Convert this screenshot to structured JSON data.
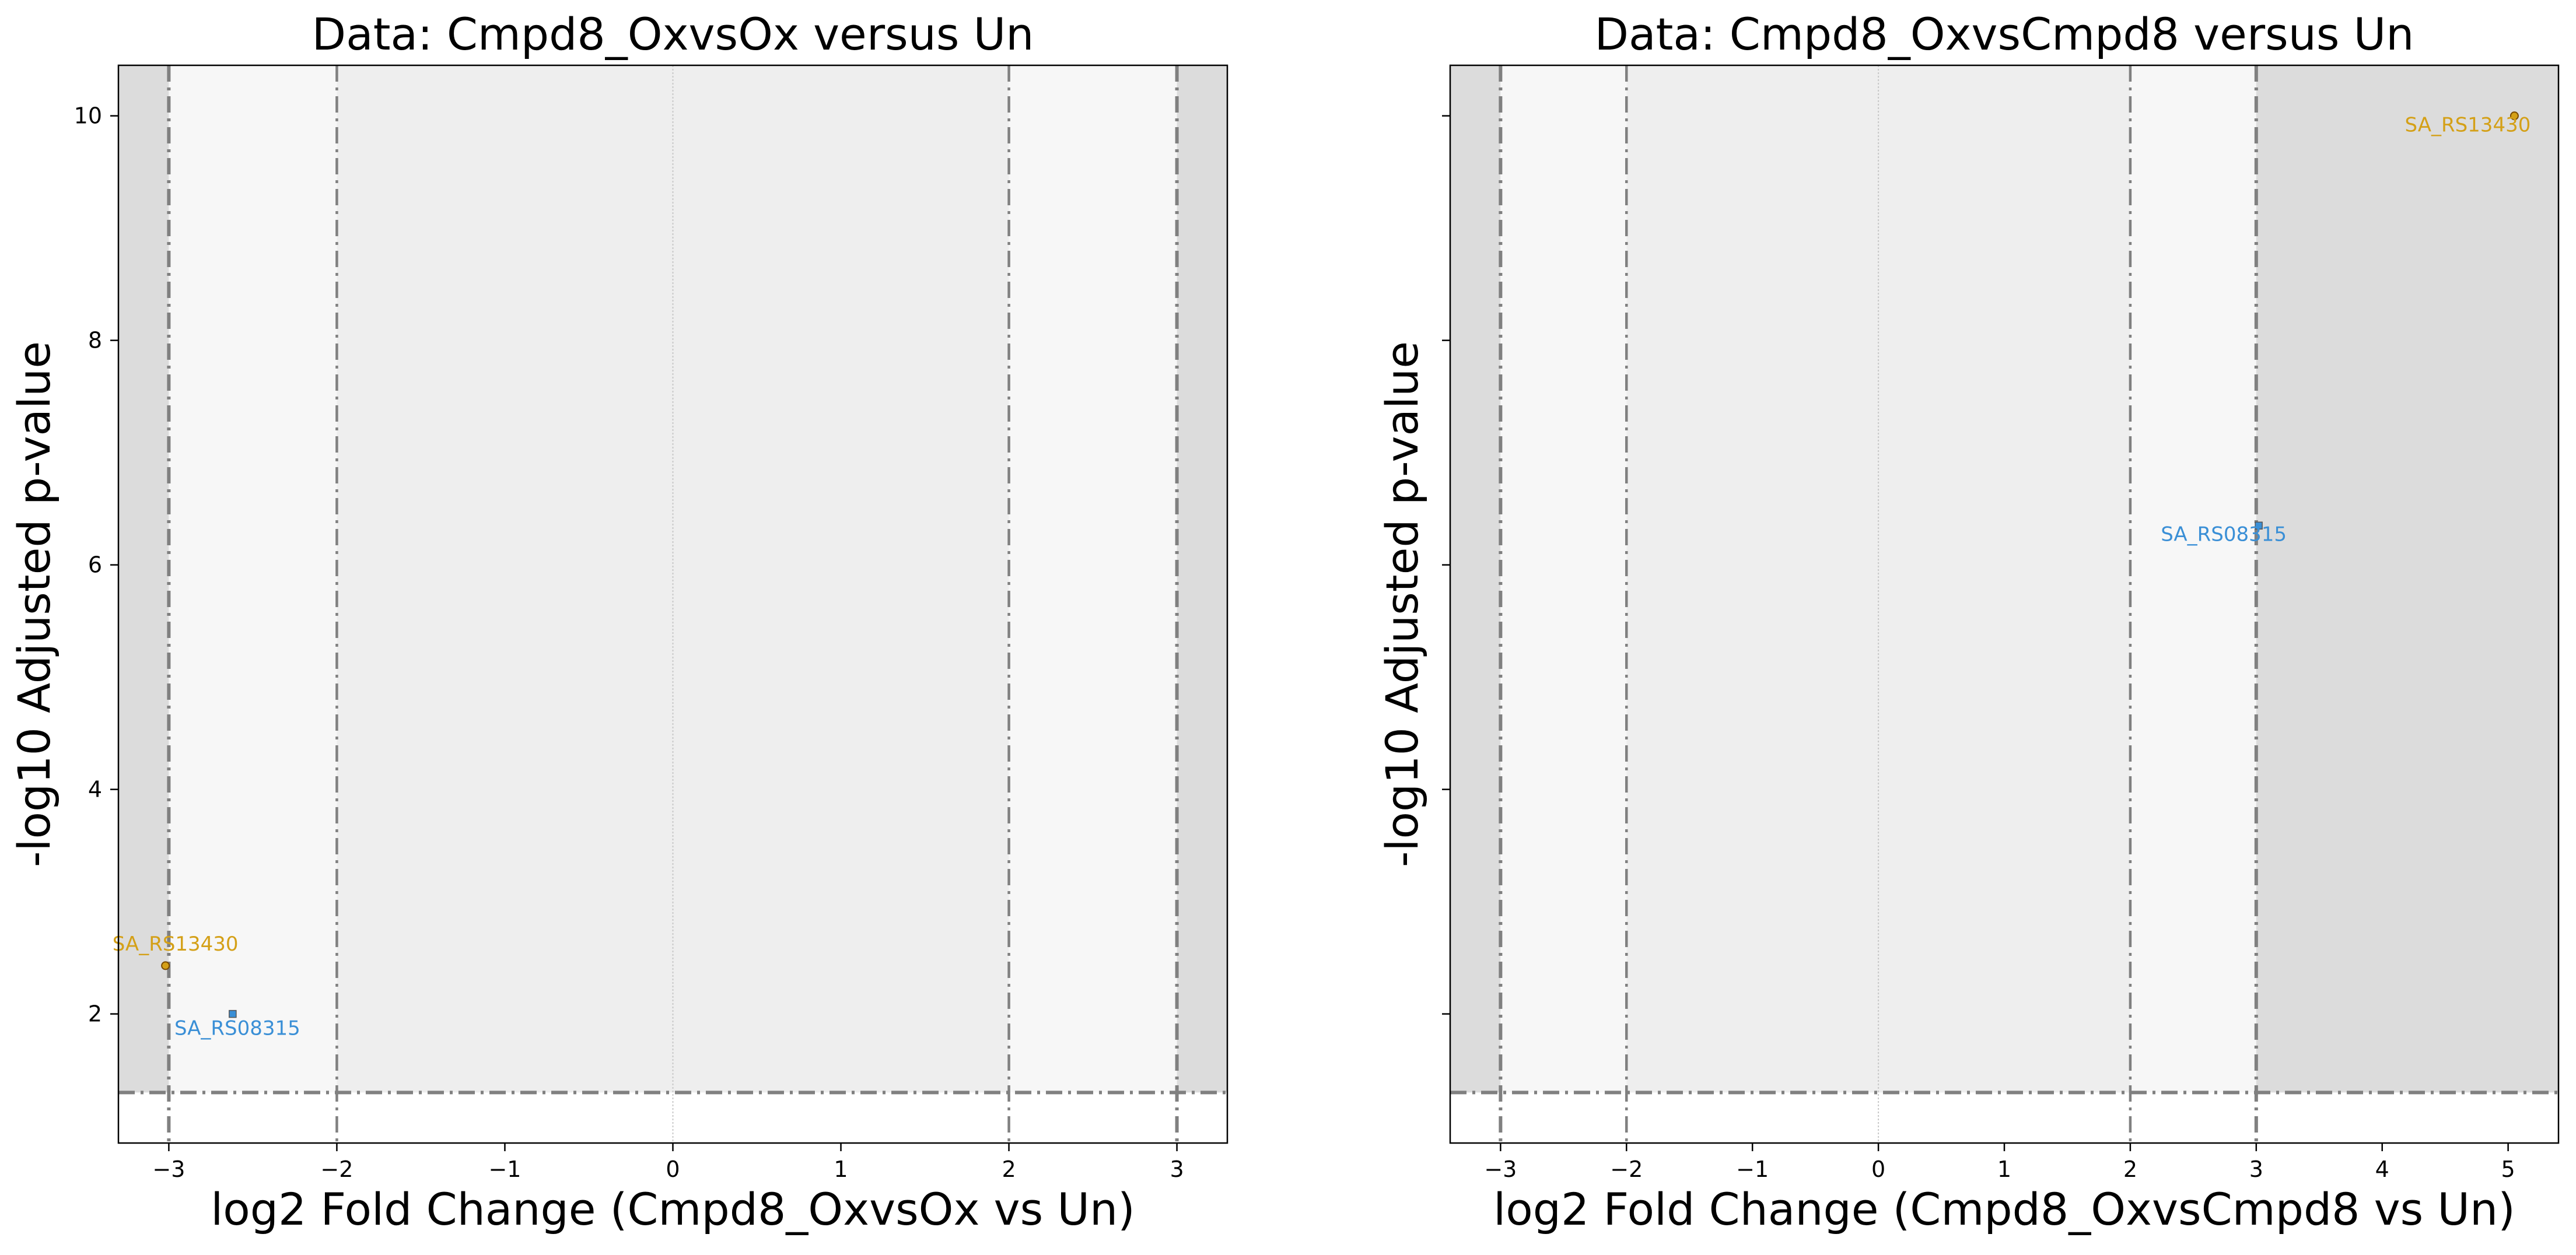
{
  "chart_data": [
    {
      "type": "scatter",
      "title": "Data: Cmpd8_OxvsOx versus Un",
      "xlabel": "log2 Fold Change (Cmpd8_OxvsOx vs Un)",
      "ylabel": "-log10 Adjusted p-value",
      "xlim": [
        -3.3,
        3.3
      ],
      "ylim": [
        0.85,
        10.45
      ],
      "xticks": [
        -3,
        -2,
        -1,
        0,
        1,
        2,
        3
      ],
      "yticks": [
        2,
        4,
        6,
        8,
        10
      ],
      "show_ytick_labels": true,
      "fc_thresholds": [
        2,
        3
      ],
      "p_threshold": 1.3,
      "grid": false,
      "points": [
        {
          "label": "SA_RS13430",
          "x": -3.02,
          "y": 2.43,
          "color": "#d4a017",
          "marker": "circle"
        },
        {
          "label": "SA_RS08315",
          "x": -2.62,
          "y": 2.0,
          "color": "#3a8fd6",
          "marker": "square"
        }
      ]
    },
    {
      "type": "scatter",
      "title": "Data: Cmpd8_OxvsCmpd8 versus Un",
      "xlabel": "log2 Fold Change (Cmpd8_OxvsCmpd8 vs Un)",
      "ylabel": "-log10 Adjusted p-value",
      "xlim": [
        -3.4,
        5.4
      ],
      "ylim": [
        0.85,
        10.45
      ],
      "xticks": [
        -3,
        -2,
        -1,
        0,
        1,
        2,
        3,
        4,
        5
      ],
      "yticks": [
        2,
        4,
        6,
        8,
        10
      ],
      "show_ytick_labels": false,
      "fc_thresholds": [
        2,
        3
      ],
      "p_threshold": 1.3,
      "grid": false,
      "points": [
        {
          "label": "SA_RS13430",
          "x": 5.05,
          "y": 10.0,
          "color": "#d4a017",
          "marker": "circle"
        },
        {
          "label": "SA_RS08315",
          "x": 3.02,
          "y": 6.35,
          "color": "#3a8fd6",
          "marker": "square"
        }
      ]
    }
  ]
}
